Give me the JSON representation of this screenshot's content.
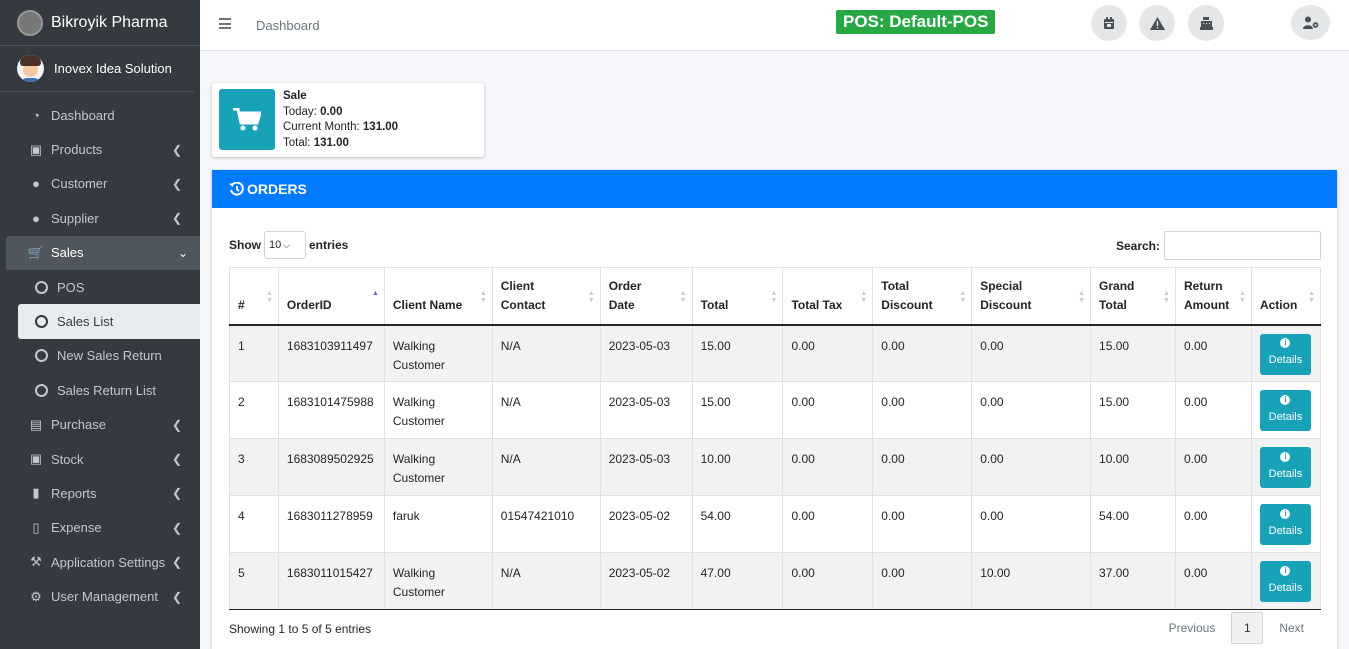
{
  "brand": {
    "name": "Bikroyik Pharma"
  },
  "user": {
    "name": "Inovex Idea Solution"
  },
  "sidebar": {
    "items": [
      {
        "label": "Dashboard",
        "icon": "dashboard-icon"
      },
      {
        "label": "Products",
        "icon": "bag-icon"
      },
      {
        "label": "Customer",
        "icon": "users-icon"
      },
      {
        "label": "Supplier",
        "icon": "user-group-icon"
      },
      {
        "label": "Sales",
        "icon": "cart-icon"
      },
      {
        "label": "Purchase",
        "icon": "money-icon"
      },
      {
        "label": "Stock",
        "icon": "warehouse-icon"
      },
      {
        "label": "Reports",
        "icon": "chart-icon"
      },
      {
        "label": "Expense",
        "icon": "file-icon"
      },
      {
        "label": "Application Settings",
        "icon": "wrench-icon"
      },
      {
        "label": "User Management",
        "icon": "user-cog-icon"
      }
    ],
    "sales_sub": [
      {
        "label": "POS"
      },
      {
        "label": "Sales List"
      },
      {
        "label": "New Sales Return"
      },
      {
        "label": "Sales Return List"
      }
    ]
  },
  "topbar": {
    "breadcrumb": "Dashboard",
    "pos_label": "POS: Default-POS"
  },
  "sale_box": {
    "title": "Sale",
    "today_label": "Today:",
    "today_value": "0.00",
    "month_label": "Current Month:",
    "month_value": "131.00",
    "total_label": "Total:",
    "total_value": "131.00"
  },
  "orders": {
    "title": "ORDERS",
    "show_label": "Show",
    "entries_label": "entries",
    "page_size": "10",
    "search_label": "Search:",
    "columns": [
      "#",
      "OrderID",
      "Client Name",
      "Client Contact",
      "Order Date",
      "Total",
      "Total Tax",
      "Total Discount",
      "Special Discount",
      "Grand Total",
      "Return Amount",
      "Action"
    ],
    "rows": [
      {
        "n": "1",
        "order_id": "1683103911497",
        "client": "Walking Customer",
        "contact": "N/A",
        "date": "2023-05-03",
        "total": "15.00",
        "tax": "0.00",
        "discount": "0.00",
        "special": "0.00",
        "grand": "15.00",
        "return": "0.00",
        "action": "Details"
      },
      {
        "n": "2",
        "order_id": "1683101475988",
        "client": "Walking Customer",
        "contact": "N/A",
        "date": "2023-05-03",
        "total": "15.00",
        "tax": "0.00",
        "discount": "0.00",
        "special": "0.00",
        "grand": "15.00",
        "return": "0.00",
        "action": "Details"
      },
      {
        "n": "3",
        "order_id": "1683089502925",
        "client": "Walking Customer",
        "contact": "N/A",
        "date": "2023-05-03",
        "total": "10.00",
        "tax": "0.00",
        "discount": "0.00",
        "special": "0.00",
        "grand": "10.00",
        "return": "0.00",
        "action": "Details"
      },
      {
        "n": "4",
        "order_id": "1683011278959",
        "client": "faruk",
        "contact": "01547421010",
        "date": "2023-05-02",
        "total": "54.00",
        "tax": "0.00",
        "discount": "0.00",
        "special": "0.00",
        "grand": "54.00",
        "return": "0.00",
        "action": "Details"
      },
      {
        "n": "5",
        "order_id": "1683011015427",
        "client": "Walking Customer",
        "contact": "N/A",
        "date": "2023-05-02",
        "total": "47.00",
        "tax": "0.00",
        "discount": "0.00",
        "special": "10.00",
        "grand": "37.00",
        "return": "0.00",
        "action": "Details"
      }
    ],
    "info": "Showing 1 to 5 of 5 entries",
    "pager": {
      "previous": "Previous",
      "current": "1",
      "next": "Next"
    }
  },
  "colors": {
    "sidebar_bg": "#343a40",
    "header_blue": "#007bff",
    "info_teal": "#17a2b8",
    "pos_green": "#28a745"
  }
}
